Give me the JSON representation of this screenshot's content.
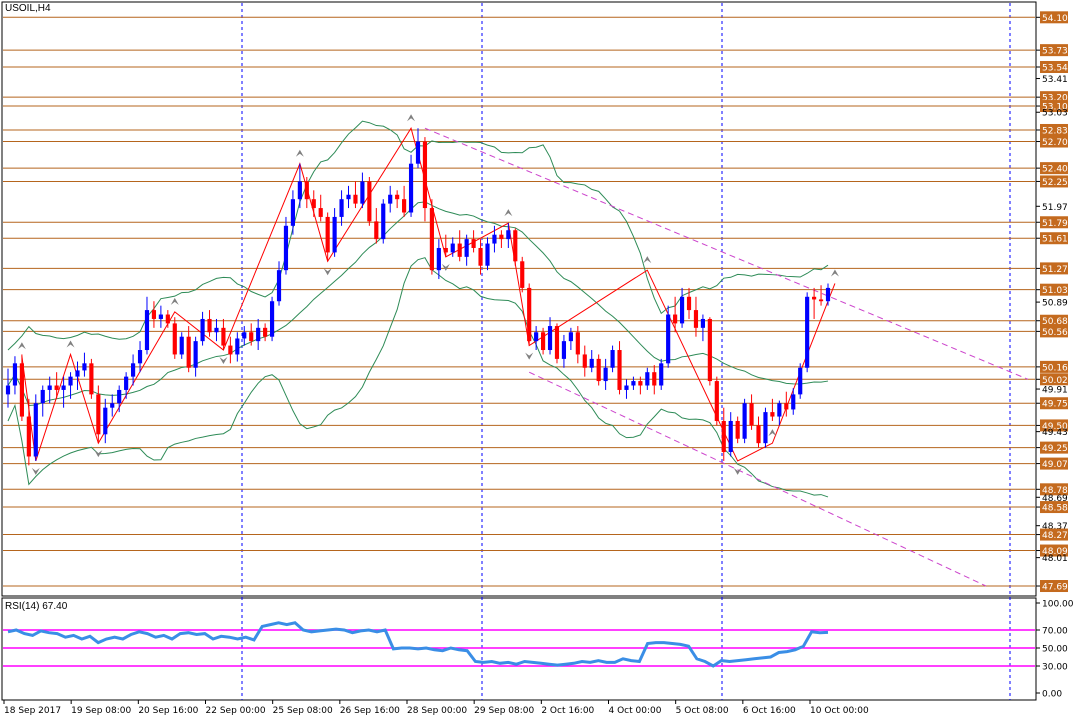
{
  "chart_title": "USOIL,H4",
  "colors": {
    "background": "#ffffff",
    "axis": "#000000",
    "level_line": "#b5651d",
    "level_label_bg": "#c46a1e",
    "bull": "#0000ff",
    "bear": "#ff0000",
    "zigzag": "#ff0000",
    "bollinger": "#2e8b57",
    "channel": "#cc44cc",
    "separator": "#0000ff",
    "rsi_line": "#3a8ee6",
    "rsi_level": "#ff00ff",
    "fractal": "#808080"
  },
  "chart_data": [
    {
      "type": "candlestick",
      "title": "USOIL,H4",
      "ylim": [
        47.6,
        54.25
      ],
      "y_axis_ticks": [
        "54.10",
        "53.73",
        "53.54",
        "53.41",
        "53.20",
        "53.10",
        "53.03",
        "52.83",
        "52.70",
        "52.40",
        "52.25",
        "51.97",
        "51.79",
        "51.61",
        "51.27",
        "51.03",
        "50.89",
        "50.68",
        "50.56",
        "50.16",
        "50.02",
        "49.91",
        "49.75",
        "49.50",
        "49.43",
        "49.25",
        "49.07",
        "48.78",
        "48.69",
        "48.58",
        "48.37",
        "48.27",
        "48.09",
        "48.01",
        "47.69"
      ],
      "highlighted_levels": [
        "54.10",
        "53.73",
        "53.54",
        "53.20",
        "53.10",
        "52.83",
        "52.70",
        "52.40",
        "52.25",
        "51.79",
        "51.61",
        "51.27",
        "51.03",
        "50.68",
        "50.56",
        "50.16",
        "50.02",
        "49.75",
        "49.50",
        "49.25",
        "49.07",
        "48.78",
        "48.58",
        "48.27",
        "48.09",
        "47.69"
      ],
      "x_labels": [
        "18 Sep 2017",
        "19 Sep 08:00",
        "20 Sep 16:00",
        "22 Sep 00:00",
        "25 Sep 08:00",
        "26 Sep 16:00",
        "28 Sep 00:00",
        "29 Sep 08:00",
        "2 Oct 16:00",
        "4 Oct 00:00",
        "5 Oct 08:00",
        "6 Oct 16:00",
        "10 Oct 00:00"
      ],
      "candles": [
        [
          49.85,
          50.14,
          49.7,
          49.95
        ],
        [
          49.95,
          50.28,
          49.85,
          50.2
        ],
        [
          50.2,
          50.3,
          49.55,
          49.6
        ],
        [
          49.6,
          49.8,
          49.05,
          49.15
        ],
        [
          49.15,
          49.85,
          49.1,
          49.75
        ],
        [
          49.75,
          49.95,
          49.6,
          49.9
        ],
        [
          49.9,
          50.05,
          49.75,
          49.95
        ],
        [
          49.95,
          50.1,
          49.8,
          49.9
        ],
        [
          49.9,
          50.05,
          49.7,
          49.95
        ],
        [
          49.95,
          50.1,
          49.8,
          50.05
        ],
        [
          50.05,
          50.22,
          49.9,
          50.12
        ],
        [
          50.12,
          50.32,
          50.05,
          50.2
        ],
        [
          50.2,
          50.25,
          49.8,
          49.85
        ],
        [
          49.85,
          49.95,
          49.3,
          49.4
        ],
        [
          49.4,
          49.8,
          49.3,
          49.7
        ],
        [
          49.7,
          49.85,
          49.6,
          49.75
        ],
        [
          49.75,
          49.95,
          49.65,
          49.9
        ],
        [
          49.9,
          50.1,
          49.8,
          50.05
        ],
        [
          50.05,
          50.3,
          49.95,
          50.2
        ],
        [
          50.2,
          50.45,
          50.1,
          50.35
        ],
        [
          50.35,
          50.95,
          50.3,
          50.8
        ],
        [
          50.8,
          50.9,
          50.6,
          50.7
        ],
        [
          50.7,
          50.85,
          50.6,
          50.75
        ],
        [
          50.75,
          50.8,
          50.6,
          50.65
        ],
        [
          50.65,
          50.72,
          50.25,
          50.3
        ],
        [
          50.3,
          50.55,
          50.25,
          50.5
        ],
        [
          50.5,
          50.62,
          50.1,
          50.15
        ],
        [
          50.15,
          50.5,
          50.05,
          50.45
        ],
        [
          50.45,
          50.78,
          50.4,
          50.7
        ],
        [
          50.7,
          50.8,
          50.5,
          50.55
        ],
        [
          50.55,
          50.7,
          50.45,
          50.6
        ],
        [
          50.6,
          50.7,
          50.35,
          50.4
        ],
        [
          50.4,
          50.5,
          50.2,
          50.3
        ],
        [
          50.3,
          50.55,
          50.22,
          50.48
        ],
        [
          50.48,
          50.62,
          50.4,
          50.55
        ],
        [
          50.55,
          50.65,
          50.4,
          50.45
        ],
        [
          50.45,
          50.7,
          50.35,
          50.6
        ],
        [
          50.6,
          50.65,
          50.45,
          50.5
        ],
        [
          50.5,
          50.95,
          50.45,
          50.9
        ],
        [
          50.9,
          51.35,
          50.85,
          51.25
        ],
        [
          51.25,
          51.85,
          51.2,
          51.75
        ],
        [
          51.75,
          52.15,
          51.65,
          52.05
        ],
        [
          52.05,
          52.45,
          51.95,
          52.25
        ],
        [
          52.25,
          52.3,
          51.95,
          52.05
        ],
        [
          52.05,
          52.15,
          51.85,
          51.95
        ],
        [
          51.95,
          52.1,
          51.8,
          51.85
        ],
        [
          51.85,
          51.9,
          51.35,
          51.45
        ],
        [
          51.45,
          51.95,
          51.4,
          51.85
        ],
        [
          51.85,
          52.15,
          51.75,
          52.05
        ],
        [
          52.05,
          52.2,
          51.95,
          52.1
        ],
        [
          52.1,
          52.25,
          51.95,
          52.0
        ],
        [
          52.0,
          52.35,
          51.95,
          52.25
        ],
        [
          52.25,
          52.3,
          51.75,
          51.8
        ],
        [
          51.8,
          51.95,
          51.55,
          51.6
        ],
        [
          51.6,
          52.05,
          51.55,
          52.0
        ],
        [
          52.0,
          52.2,
          51.9,
          52.1
        ],
        [
          52.1,
          52.15,
          51.95,
          52.05
        ],
        [
          52.05,
          52.2,
          51.85,
          51.9
        ],
        [
          51.9,
          52.55,
          51.85,
          52.45
        ],
        [
          52.45,
          52.85,
          52.4,
          52.7
        ],
        [
          52.7,
          52.75,
          51.8,
          51.95
        ],
        [
          51.95,
          52.05,
          51.2,
          51.25
        ],
        [
          51.25,
          51.6,
          51.15,
          51.5
        ],
        [
          51.5,
          51.65,
          51.4,
          51.45
        ],
        [
          51.45,
          51.62,
          51.4,
          51.55
        ],
        [
          51.55,
          51.7,
          51.35,
          51.4
        ],
        [
          51.4,
          51.65,
          51.3,
          51.6
        ],
        [
          51.6,
          51.7,
          51.45,
          51.5
        ],
        [
          51.5,
          51.6,
          51.2,
          51.3
        ],
        [
          51.3,
          51.62,
          51.25,
          51.55
        ],
        [
          51.55,
          51.75,
          51.45,
          51.65
        ],
        [
          51.65,
          51.7,
          51.5,
          51.6
        ],
        [
          51.6,
          51.78,
          51.5,
          51.7
        ],
        [
          51.7,
          51.72,
          51.3,
          51.35
        ],
        [
          51.35,
          51.4,
          51.0,
          51.05
        ],
        [
          51.05,
          51.1,
          50.4,
          50.45
        ],
        [
          50.45,
          50.62,
          50.35,
          50.55
        ],
        [
          50.55,
          50.6,
          50.3,
          50.35
        ],
        [
          50.35,
          50.72,
          50.3,
          50.62
        ],
        [
          50.62,
          50.65,
          50.2,
          50.25
        ],
        [
          50.25,
          50.52,
          50.15,
          50.45
        ],
        [
          50.45,
          50.6,
          50.35,
          50.55
        ],
        [
          50.55,
          50.62,
          50.2,
          50.3
        ],
        [
          50.3,
          50.4,
          50.05,
          50.15
        ],
        [
          50.15,
          50.35,
          50.1,
          50.25
        ],
        [
          50.25,
          50.3,
          49.95,
          50.0
        ],
        [
          50.0,
          50.25,
          49.9,
          50.15
        ],
        [
          50.15,
          50.4,
          50.1,
          50.35
        ],
        [
          50.35,
          50.45,
          49.85,
          49.9
        ],
        [
          49.9,
          50.02,
          49.8,
          49.95
        ],
        [
          49.95,
          50.05,
          49.9,
          50.0
        ],
        [
          50.0,
          50.05,
          49.85,
          49.95
        ],
        [
          49.95,
          50.15,
          49.9,
          50.1
        ],
        [
          50.1,
          50.18,
          49.85,
          49.95
        ],
        [
          49.95,
          50.25,
          49.9,
          50.2
        ],
        [
          50.2,
          50.85,
          50.15,
          50.75
        ],
        [
          50.75,
          50.95,
          50.55,
          50.65
        ],
        [
          50.65,
          51.05,
          50.6,
          50.95
        ],
        [
          50.95,
          51.05,
          50.7,
          50.8
        ],
        [
          50.8,
          50.95,
          50.5,
          50.6
        ],
        [
          50.6,
          50.75,
          50.45,
          50.7
        ],
        [
          50.7,
          50.72,
          49.95,
          50.0
        ],
        [
          50.0,
          50.05,
          49.5,
          49.55
        ],
        [
          49.55,
          49.7,
          49.1,
          49.2
        ],
        [
          49.2,
          49.65,
          49.15,
          49.55
        ],
        [
          49.55,
          49.6,
          49.3,
          49.35
        ],
        [
          49.35,
          49.8,
          49.3,
          49.75
        ],
        [
          49.75,
          49.85,
          49.45,
          49.5
        ],
        [
          49.5,
          49.6,
          49.25,
          49.3
        ],
        [
          49.3,
          49.7,
          49.25,
          49.65
        ],
        [
          49.65,
          49.8,
          49.55,
          49.6
        ],
        [
          49.6,
          49.78,
          49.5,
          49.75
        ],
        [
          49.75,
          49.88,
          49.6,
          49.68
        ],
        [
          49.68,
          49.92,
          49.62,
          49.85
        ],
        [
          49.85,
          50.2,
          49.8,
          50.15
        ],
        [
          50.15,
          51.0,
          50.1,
          50.95
        ],
        [
          50.95,
          51.05,
          50.7,
          50.92
        ],
        [
          50.92,
          51.08,
          50.85,
          50.9
        ],
        [
          50.9,
          51.1,
          50.85,
          51.05
        ]
      ]
    },
    {
      "type": "line",
      "title": "RSI(14) 67.40",
      "ylim": [
        0,
        100
      ],
      "y_axis_ticks": [
        "100.00",
        "70.00",
        "50.00",
        "30.00",
        "0.00"
      ],
      "levels": [
        70,
        50,
        30
      ],
      "series": [
        {
          "values": [
            68,
            70,
            66,
            64,
            69,
            67,
            66,
            62,
            64,
            60,
            63,
            56,
            60,
            62,
            60,
            65,
            68,
            66,
            62,
            64,
            60,
            66,
            67,
            65,
            66,
            60,
            63,
            62,
            60,
            62,
            59,
            74,
            76,
            78,
            76,
            78,
            70,
            68,
            69,
            70,
            71,
            70,
            67,
            69,
            70,
            68,
            70,
            49,
            50,
            50,
            49,
            50,
            48,
            47,
            50,
            48,
            47,
            35,
            34,
            35,
            33,
            34,
            32,
            35,
            34,
            33,
            32,
            31,
            32,
            33,
            35,
            34,
            36,
            34,
            34,
            38,
            36,
            35,
            55,
            56,
            56,
            55,
            54,
            52,
            38,
            35,
            30,
            36,
            35,
            36,
            37,
            38,
            39,
            40,
            45,
            46,
            48,
            52,
            68,
            67,
            67.4
          ]
        }
      ]
    }
  ]
}
